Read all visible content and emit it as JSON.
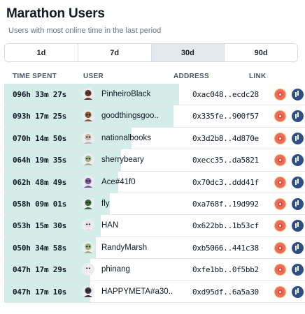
{
  "title": "Marathon Users",
  "subtitle": "Users with most online time in the last period",
  "tabs": [
    {
      "label": "1d"
    },
    {
      "label": "7d"
    },
    {
      "label": "30d"
    },
    {
      "label": "90d"
    }
  ],
  "active_tab": "30d",
  "columns": {
    "time": "TIME SPENT",
    "user": "USER",
    "address": "ADDRESS",
    "link": "LINK"
  },
  "rows": [
    {
      "time": "096h 33m 27s",
      "user": "PinheiroBlack",
      "address": "0xac048..ecdc28",
      "share": 1.0
    },
    {
      "time": "093h 17m 25s",
      "user": "goodthingsgoo..",
      "address": "0x335fe..900f57",
      "share": 0.966
    },
    {
      "time": "070h 14m 50s",
      "user": "nationalbooks",
      "address": "0x3d2b8..4d870e",
      "share": 0.727
    },
    {
      "time": "064h 19m 35s",
      "user": "sherrybeary",
      "address": "0xecc35..da5821",
      "share": 0.666
    },
    {
      "time": "062h 48m 49s",
      "user": "Ace#41f0",
      "address": "0x70dc3..ddd41f",
      "share": 0.65
    },
    {
      "time": "058h 09m 01s",
      "user": "fly",
      "address": "0xa768f..19d992",
      "share": 0.602
    },
    {
      "time": "053h 15m 30s",
      "user": "HAN",
      "address": "0x622bb..1b53cf",
      "share": 0.552
    },
    {
      "time": "050h 34m 58s",
      "user": "RandyMarsh",
      "address": "0xb5066..441c38",
      "share": 0.524
    },
    {
      "time": "047h 17m 29s",
      "user": "phinang",
      "address": "0xfe1bb..0f5bb2",
      "share": 0.49
    },
    {
      "time": "047h 17m 10s",
      "user": "HAPPYMETA#a30..",
      "address": "0xd95df..6a5a30",
      "share": 0.49
    }
  ],
  "avatar_colors": [
    "#6b3a2a",
    "#8a5a3c",
    "#c7b7a3",
    "#a3b18a",
    "#7d5a9c",
    "#3e6b3a",
    "#e8dfe6",
    "#9ab27a",
    "#f1f1f1",
    "#3a3a3a"
  ]
}
